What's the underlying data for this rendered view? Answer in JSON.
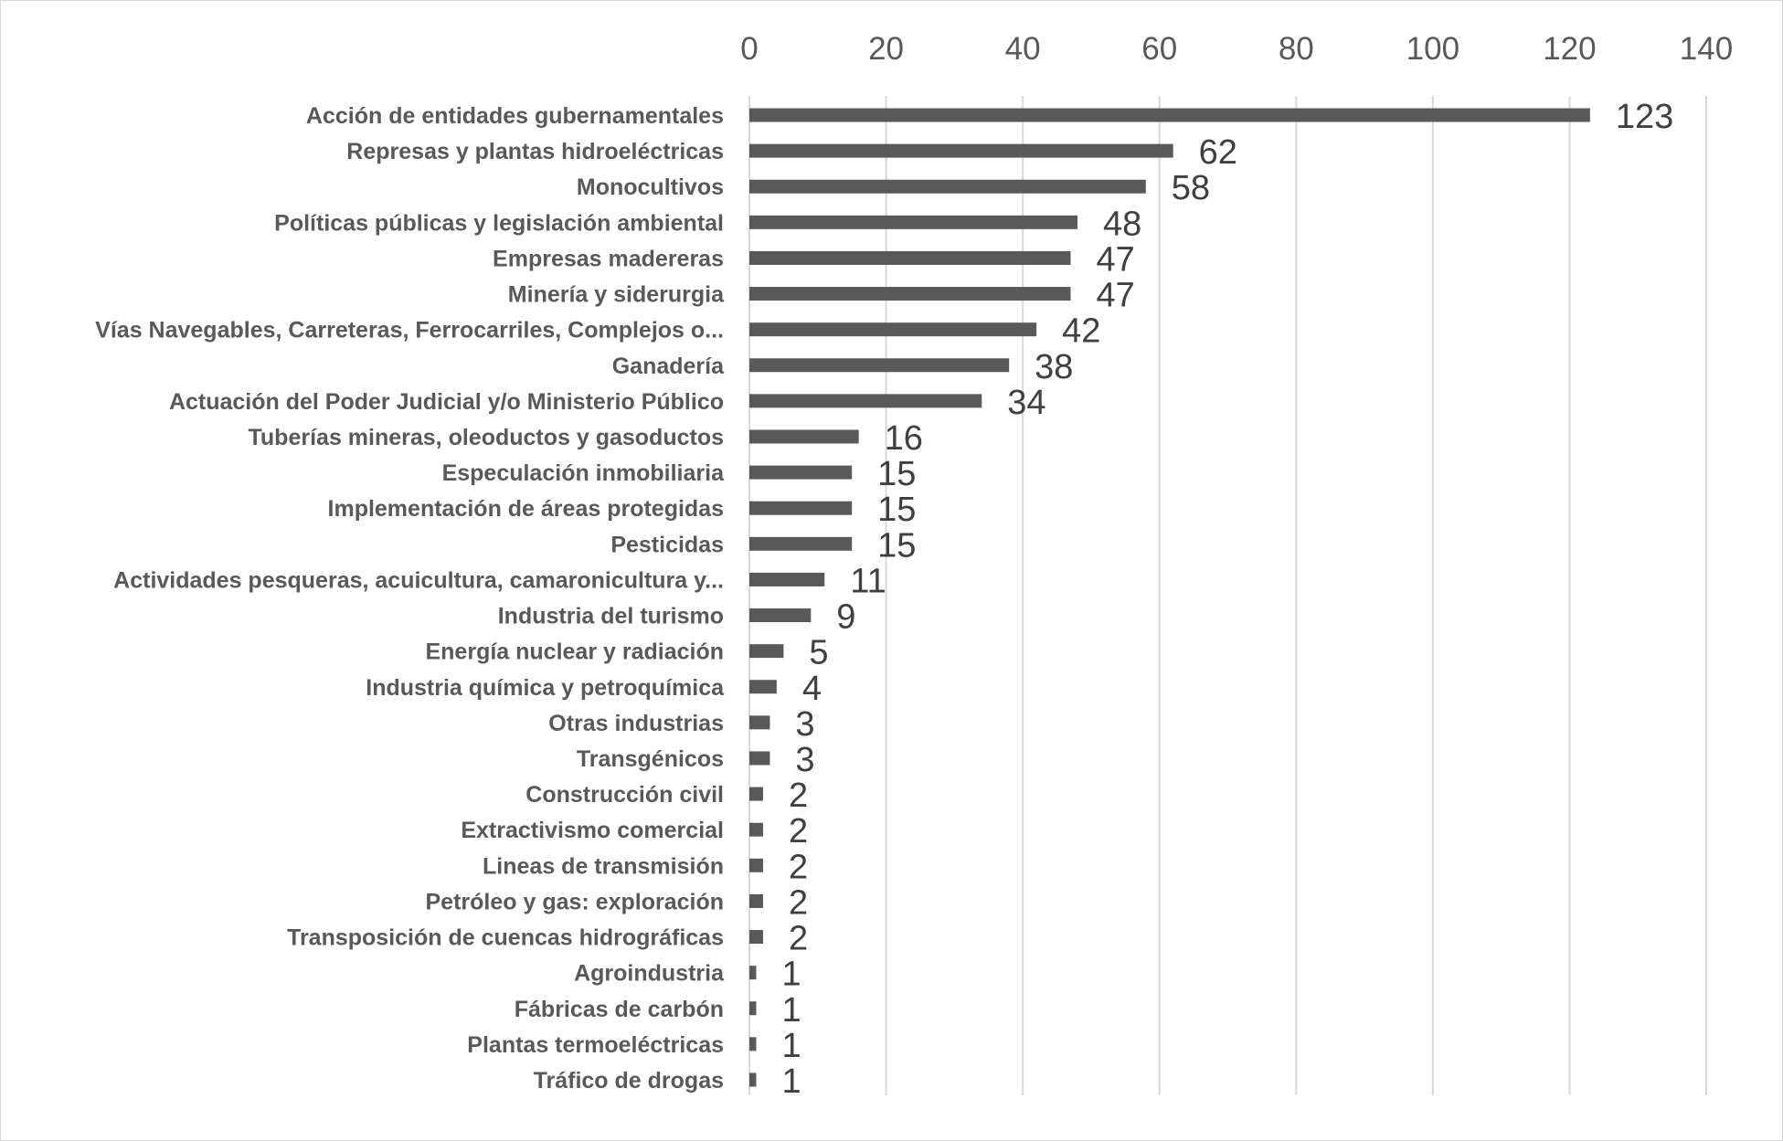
{
  "chart_data": {
    "type": "bar",
    "orientation": "horizontal",
    "categories": [
      "Acción de entidades gubernamentales",
      "Represas y plantas hidroeléctricas",
      "Monocultivos",
      "Políticas públicas y legislación ambiental",
      "Empresas madereras",
      "Minería y siderurgia",
      "Vías Navegables, Carreteras, Ferrocarriles, Complejos o...",
      "Ganadería",
      "Actuación del Poder Judicial y/o Ministerio Público",
      "Tuberías mineras, oleoductos y gasoductos",
      "Especulación inmobiliaria",
      "Implementación de áreas protegidas",
      "Pesticidas",
      "Actividades pesqueras, acuicultura, camaronicultura y...",
      "Industria del turismo",
      "Energía nuclear y radiación",
      "Industria química y petroquímica",
      "Otras industrias",
      "Transgénicos",
      "Construcción civil",
      "Extractivismo comercial",
      "Lineas de transmisión",
      "Petróleo y gas: exploración",
      "Transposición de cuencas hidrográficas",
      "Agroindustria",
      "Fábricas de carbón",
      "Plantas termoeléctricas",
      "Tráfico de drogas"
    ],
    "values": [
      123,
      62,
      58,
      48,
      47,
      47,
      42,
      38,
      34,
      16,
      15,
      15,
      15,
      11,
      9,
      5,
      4,
      3,
      3,
      2,
      2,
      2,
      2,
      2,
      1,
      1,
      1,
      1
    ],
    "xlim": [
      0,
      140
    ],
    "xticks": [
      0,
      20,
      40,
      60,
      80,
      100,
      120,
      140
    ],
    "x_axis_position": "top",
    "grid": true,
    "data_labels": true,
    "bar_color": "#595959",
    "grid_color": "#d9d9d9",
    "label_color": "#595959"
  }
}
